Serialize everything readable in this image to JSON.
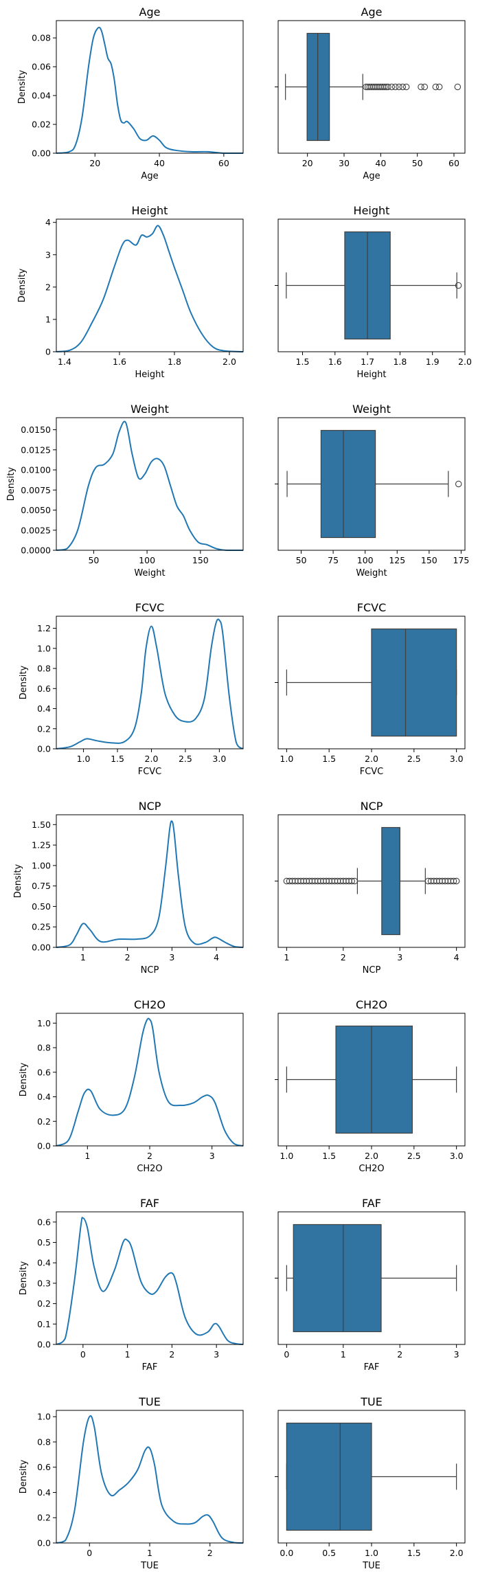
{
  "chart_data": [
    {
      "type": "kde",
      "variable": "Age",
      "title": "Age",
      "xlabel": "Age",
      "ylabel": "Density",
      "xlim": [
        8,
        66
      ],
      "ylim": [
        0,
        0.092
      ],
      "xticks": [
        20,
        40,
        60
      ],
      "xtick_labels": [
        "20",
        "40",
        "60"
      ],
      "yticks": [
        0,
        0.02,
        0.04,
        0.06,
        0.08
      ],
      "ytick_labels": [
        "0.00",
        "0.02",
        "0.04",
        "0.06",
        "0.08"
      ],
      "x": [
        8,
        12,
        14,
        16,
        18,
        19.5,
        21,
        22,
        23,
        24,
        25,
        26,
        27,
        28,
        29,
        30,
        32,
        34,
        36,
        38,
        40,
        42,
        45,
        50,
        55,
        60,
        66
      ],
      "y": [
        0,
        0.001,
        0.006,
        0.025,
        0.06,
        0.08,
        0.087,
        0.085,
        0.076,
        0.066,
        0.062,
        0.051,
        0.034,
        0.023,
        0.021,
        0.022,
        0.017,
        0.01,
        0.009,
        0.012,
        0.009,
        0.004,
        0.002,
        0.001,
        0.001,
        0,
        0
      ]
    },
    {
      "type": "box",
      "variable": "Age",
      "title": "Age",
      "xlabel": "Age",
      "xlim": [
        12,
        63
      ],
      "xticks": [
        20,
        30,
        40,
        50,
        60
      ],
      "xtick_labels": [
        "20",
        "30",
        "40",
        "50",
        "60"
      ],
      "whisker_low": 14,
      "q1": 19.9,
      "median": 22.8,
      "q3": 26,
      "whisker_high": 35.1,
      "outliers": [
        36,
        36.5,
        37,
        37.5,
        38,
        38.5,
        39,
        39.5,
        40,
        40.5,
        41,
        41.5,
        42,
        43,
        44,
        45,
        46,
        47,
        51,
        52,
        55,
        56,
        61
      ]
    },
    {
      "type": "kde",
      "variable": "Height",
      "title": "Height",
      "xlabel": "Height",
      "ylabel": "Density",
      "xlim": [
        1.37,
        2.05
      ],
      "ylim": [
        0,
        4.1
      ],
      "xticks": [
        1.4,
        1.6,
        1.8,
        2.0
      ],
      "xtick_labels": [
        "1.4",
        "1.6",
        "1.8",
        "2.0"
      ],
      "yticks": [
        0,
        1,
        2,
        3,
        4
      ],
      "ytick_labels": [
        "0",
        "1",
        "2",
        "3",
        "4"
      ],
      "x": [
        1.37,
        1.42,
        1.46,
        1.5,
        1.54,
        1.58,
        1.61,
        1.63,
        1.66,
        1.68,
        1.7,
        1.72,
        1.74,
        1.76,
        1.78,
        1.8,
        1.83,
        1.86,
        1.9,
        1.94,
        1.98,
        2.05
      ],
      "y": [
        0,
        0.05,
        0.3,
        0.9,
        1.6,
        2.6,
        3.3,
        3.45,
        3.3,
        3.6,
        3.55,
        3.65,
        3.9,
        3.6,
        3.1,
        2.6,
        1.9,
        1.2,
        0.55,
        0.15,
        0.03,
        0
      ]
    },
    {
      "type": "box",
      "variable": "Height",
      "title": "Height",
      "xlabel": "Height",
      "xlim": [
        1.425,
        2.0
      ],
      "xticks": [
        1.5,
        1.6,
        1.7,
        1.8,
        1.9,
        2.0
      ],
      "xtick_labels": [
        "1.5",
        "1.6",
        "1.7",
        "1.8",
        "1.9",
        "2.0"
      ],
      "whisker_low": 1.45,
      "q1": 1.63,
      "median": 1.7,
      "q3": 1.77,
      "whisker_high": 1.975,
      "outliers": [
        1.98
      ]
    },
    {
      "type": "kde",
      "variable": "Weight",
      "title": "Weight",
      "xlabel": "Weight",
      "ylabel": "Density",
      "xlim": [
        15,
        190
      ],
      "ylim": [
        0,
        0.0165
      ],
      "xticks": [
        50,
        100,
        150
      ],
      "xtick_labels": [
        "50",
        "100",
        "150"
      ],
      "yticks": [
        0,
        0.0025,
        0.005,
        0.0075,
        0.01,
        0.0125,
        0.015
      ],
      "ytick_labels": [
        "0.0000",
        "0.0025",
        "0.0050",
        "0.0075",
        "0.0100",
        "0.0125",
        "0.0150"
      ],
      "x": [
        15,
        25,
        35,
        45,
        52,
        60,
        68,
        74,
        80,
        86,
        92,
        98,
        104,
        110,
        116,
        122,
        128,
        134,
        140,
        148,
        156,
        165,
        175,
        190
      ],
      "y": [
        0,
        0.0002,
        0.0025,
        0.008,
        0.0103,
        0.0107,
        0.012,
        0.0148,
        0.0159,
        0.012,
        0.009,
        0.0095,
        0.011,
        0.0114,
        0.0105,
        0.008,
        0.0055,
        0.0043,
        0.0025,
        0.001,
        0.0007,
        0.0002,
        0,
        0
      ]
    },
    {
      "type": "box",
      "variable": "Weight",
      "title": "Weight",
      "xlabel": "Weight",
      "xlim": [
        32,
        178
      ],
      "xticks": [
        50,
        75,
        100,
        125,
        150,
        175
      ],
      "xtick_labels": [
        "50",
        "75",
        "100",
        "125",
        "150",
        "175"
      ],
      "whisker_low": 39,
      "q1": 65.5,
      "median": 83,
      "q3": 108,
      "whisker_high": 165,
      "outliers": [
        173
      ]
    },
    {
      "type": "kde",
      "variable": "FCVC",
      "title": "FCVC",
      "xlabel": "FCVC",
      "ylabel": "Density",
      "xlim": [
        0.6,
        3.35
      ],
      "ylim": [
        0,
        1.32
      ],
      "xticks": [
        1.0,
        1.5,
        2.0,
        2.5,
        3.0
      ],
      "xtick_labels": [
        "1.0",
        "1.5",
        "2.0",
        "2.5",
        "3.0"
      ],
      "yticks": [
        0,
        0.2,
        0.4,
        0.6,
        0.8,
        1.0,
        1.2
      ],
      "ytick_labels": [
        "0.0",
        "0.2",
        "0.4",
        "0.6",
        "0.8",
        "1.0",
        "1.2"
      ],
      "x": [
        0.6,
        0.8,
        0.95,
        1.05,
        1.2,
        1.4,
        1.6,
        1.75,
        1.85,
        1.92,
        2.0,
        2.08,
        2.2,
        2.35,
        2.5,
        2.65,
        2.78,
        2.88,
        2.95,
        3.0,
        3.05,
        3.15,
        3.25,
        3.35
      ],
      "y": [
        0,
        0.02,
        0.07,
        0.1,
        0.08,
        0.06,
        0.07,
        0.2,
        0.55,
        1.0,
        1.22,
        1.0,
        0.55,
        0.33,
        0.27,
        0.3,
        0.5,
        1.0,
        1.25,
        1.28,
        1.15,
        0.5,
        0.06,
        0
      ]
    },
    {
      "type": "box",
      "variable": "FCVC",
      "title": "FCVC",
      "xlabel": "FCVC",
      "xlim": [
        0.9,
        3.1
      ],
      "xticks": [
        1.0,
        1.5,
        2.0,
        2.5,
        3.0
      ],
      "xtick_labels": [
        "1.0",
        "1.5",
        "2.0",
        "2.5",
        "3.0"
      ],
      "whisker_low": 1.0,
      "q1": 2.0,
      "median": 2.4,
      "q3": 3.0,
      "whisker_high": 3.0,
      "outliers": []
    },
    {
      "type": "kde",
      "variable": "NCP",
      "title": "NCP",
      "xlabel": "NCP",
      "ylabel": "Density",
      "xlim": [
        0.4,
        4.6
      ],
      "ylim": [
        0,
        1.62
      ],
      "xticks": [
        1,
        2,
        3,
        4
      ],
      "xtick_labels": [
        "1",
        "2",
        "3",
        "4"
      ],
      "yticks": [
        0,
        0.25,
        0.5,
        0.75,
        1.0,
        1.25,
        1.5
      ],
      "ytick_labels": [
        "0.00",
        "0.25",
        "0.50",
        "0.75",
        "1.00",
        "1.25",
        "1.50"
      ],
      "x": [
        0.4,
        0.7,
        0.85,
        1.0,
        1.15,
        1.4,
        1.8,
        2.2,
        2.5,
        2.7,
        2.85,
        2.95,
        3.0,
        3.05,
        3.15,
        3.3,
        3.5,
        3.75,
        3.9,
        4.0,
        4.2,
        4.4,
        4.6
      ],
      "y": [
        0,
        0.03,
        0.15,
        0.29,
        0.22,
        0.07,
        0.1,
        0.1,
        0.14,
        0.35,
        0.95,
        1.45,
        1.54,
        1.4,
        0.85,
        0.25,
        0.05,
        0.06,
        0.11,
        0.12,
        0.06,
        0.01,
        0
      ]
    },
    {
      "type": "box",
      "variable": "NCP",
      "title": "NCP",
      "xlabel": "NCP",
      "xlim": [
        0.85,
        4.15
      ],
      "xticks": [
        1,
        2,
        3,
        4
      ],
      "xtick_labels": [
        "1",
        "2",
        "3",
        "4"
      ],
      "whisker_low": 2.25,
      "q1": 2.68,
      "median": 3.0,
      "q3": 3.0,
      "whisker_high": 3.45,
      "outliers": [
        1.0,
        1.05,
        1.1,
        1.15,
        1.2,
        1.25,
        1.3,
        1.35,
        1.4,
        1.45,
        1.5,
        1.55,
        1.6,
        1.65,
        1.7,
        1.75,
        1.8,
        1.85,
        1.9,
        1.95,
        2.0,
        2.05,
        2.1,
        2.15,
        2.2,
        3.5,
        3.55,
        3.6,
        3.65,
        3.7,
        3.75,
        3.8,
        3.85,
        3.9,
        3.95,
        4.0
      ]
    },
    {
      "type": "kde",
      "variable": "CH2O",
      "title": "CH2O",
      "xlabel": "CH2O",
      "ylabel": "Density",
      "xlim": [
        0.5,
        3.5
      ],
      "ylim": [
        0,
        1.08
      ],
      "xticks": [
        1,
        2,
        3
      ],
      "xtick_labels": [
        "1",
        "2",
        "3"
      ],
      "yticks": [
        0,
        0.2,
        0.4,
        0.6,
        0.8,
        1.0
      ],
      "ytick_labels": [
        "0.0",
        "0.2",
        "0.4",
        "0.6",
        "0.8",
        "1.0"
      ],
      "x": [
        0.5,
        0.7,
        0.85,
        0.95,
        1.05,
        1.2,
        1.4,
        1.6,
        1.75,
        1.88,
        1.95,
        2.0,
        2.05,
        2.15,
        2.3,
        2.5,
        2.7,
        2.85,
        2.95,
        3.05,
        3.2,
        3.35,
        3.5
      ],
      "y": [
        0,
        0.05,
        0.28,
        0.43,
        0.45,
        0.3,
        0.25,
        0.3,
        0.55,
        0.9,
        1.02,
        1.03,
        0.95,
        0.6,
        0.36,
        0.33,
        0.35,
        0.4,
        0.41,
        0.35,
        0.13,
        0.02,
        0
      ]
    },
    {
      "type": "box",
      "variable": "CH2O",
      "title": "CH2O",
      "xlabel": "CH2O",
      "xlim": [
        0.9,
        3.1
      ],
      "xticks": [
        1.0,
        1.5,
        2.0,
        2.5,
        3.0
      ],
      "xtick_labels": [
        "1.0",
        "1.5",
        "2.0",
        "2.5",
        "3.0"
      ],
      "whisker_low": 1.0,
      "q1": 1.58,
      "median": 2.0,
      "q3": 2.48,
      "whisker_high": 3.0,
      "outliers": []
    },
    {
      "type": "kde",
      "variable": "FAF",
      "title": "FAF",
      "xlabel": "FAF",
      "ylabel": "Density",
      "xlim": [
        -0.6,
        3.6
      ],
      "ylim": [
        0,
        0.65
      ],
      "xticks": [
        0,
        1,
        2,
        3
      ],
      "xtick_labels": [
        "0",
        "1",
        "2",
        "3"
      ],
      "yticks": [
        0,
        0.1,
        0.2,
        0.3,
        0.4,
        0.5,
        0.6
      ],
      "ytick_labels": [
        "0.0",
        "0.1",
        "0.2",
        "0.3",
        "0.4",
        "0.5",
        "0.6"
      ],
      "x": [
        -0.6,
        -0.4,
        -0.2,
        -0.05,
        0.0,
        0.1,
        0.25,
        0.45,
        0.7,
        0.9,
        1.0,
        1.1,
        1.3,
        1.5,
        1.65,
        1.85,
        2.0,
        2.1,
        2.3,
        2.55,
        2.8,
        2.95,
        3.05,
        3.25,
        3.45,
        3.6
      ],
      "y": [
        0,
        0.03,
        0.3,
        0.58,
        0.62,
        0.57,
        0.38,
        0.26,
        0.36,
        0.5,
        0.51,
        0.47,
        0.31,
        0.25,
        0.26,
        0.33,
        0.35,
        0.3,
        0.13,
        0.05,
        0.06,
        0.1,
        0.09,
        0.02,
        0.003,
        0
      ]
    },
    {
      "type": "box",
      "variable": "FAF",
      "title": "FAF",
      "xlabel": "FAF",
      "xlim": [
        -0.15,
        3.15
      ],
      "xticks": [
        0,
        1,
        2,
        3
      ],
      "xtick_labels": [
        "0",
        "1",
        "2",
        "3"
      ],
      "whisker_low": 0.0,
      "q1": 0.12,
      "median": 1.0,
      "q3": 1.67,
      "whisker_high": 3.0,
      "outliers": []
    },
    {
      "type": "kde",
      "variable": "TUE",
      "title": "TUE",
      "xlabel": "TUE",
      "ylabel": "Density",
      "xlim": [
        -0.55,
        2.55
      ],
      "ylim": [
        0,
        1.05
      ],
      "xticks": [
        0,
        1,
        2
      ],
      "xtick_labels": [
        "0",
        "1",
        "2"
      ],
      "yticks": [
        0,
        0.2,
        0.4,
        0.6,
        0.8,
        1.0
      ],
      "ytick_labels": [
        "0.0",
        "0.2",
        "0.4",
        "0.6",
        "0.8",
        "1.0"
      ],
      "x": [
        -0.55,
        -0.4,
        -0.25,
        -0.1,
        0.0,
        0.08,
        0.2,
        0.35,
        0.5,
        0.65,
        0.8,
        0.92,
        1.0,
        1.08,
        1.2,
        1.4,
        1.6,
        1.75,
        1.88,
        1.97,
        2.05,
        2.2,
        2.4,
        2.55
      ],
      "y": [
        0,
        0.02,
        0.25,
        0.8,
        1.0,
        0.92,
        0.55,
        0.38,
        0.42,
        0.48,
        0.58,
        0.73,
        0.75,
        0.62,
        0.3,
        0.17,
        0.15,
        0.16,
        0.21,
        0.22,
        0.17,
        0.04,
        0.003,
        0
      ]
    },
    {
      "type": "box",
      "variable": "TUE",
      "title": "TUE",
      "xlabel": "TUE",
      "xlim": [
        -0.1,
        2.1
      ],
      "xticks": [
        0.0,
        0.5,
        1.0,
        1.5,
        2.0
      ],
      "xtick_labels": [
        "0.0",
        "0.5",
        "1.0",
        "1.5",
        "2.0"
      ],
      "whisker_low": 0.0,
      "q1": 0.0,
      "median": 0.63,
      "q3": 1.0,
      "whisker_high": 2.0,
      "outliers": []
    }
  ],
  "colors": {
    "line": "#1f77b4",
    "box_fill": "#3274a1",
    "box_edge": "#3f3f3f",
    "axis": "#000000",
    "text": "#000000"
  }
}
